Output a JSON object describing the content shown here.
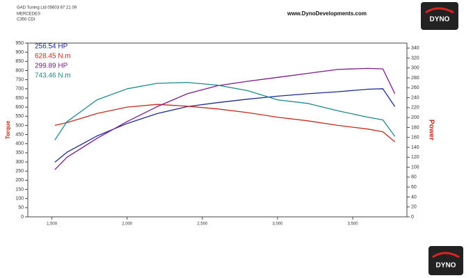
{
  "chart_data": {
    "type": "line",
    "header_lines": [
      "GAD Tuning Ltd 05603 67 21 09",
      "MERCEDES",
      "C350 CDI"
    ],
    "website": "www.DynoDevelopments.com",
    "logo": "DYNO",
    "ylabel": "Torque",
    "y2label": "Power",
    "x": [
      1520,
      1600,
      1800,
      2000,
      2200,
      2400,
      2600,
      2800,
      3000,
      3200,
      3400,
      3600,
      3700,
      3780
    ],
    "xlim": [
      1340,
      3860
    ],
    "xticks": [
      {
        "value": 1500,
        "label": "1,500"
      },
      {
        "value": 2000,
        "label": "2,000"
      },
      {
        "value": 2500,
        "label": "2,500"
      },
      {
        "value": 3000,
        "label": "3,000"
      },
      {
        "value": 3500,
        "label": "3,500"
      }
    ],
    "ylim": [
      0,
      950
    ],
    "yticks": [
      0,
      50,
      100,
      150,
      200,
      250,
      300,
      350,
      400,
      450,
      500,
      550,
      600,
      650,
      700,
      750,
      800,
      850,
      900,
      950
    ],
    "y2lim": [
      0,
      350
    ],
    "y2ticks": [
      0,
      20,
      40,
      60,
      80,
      100,
      120,
      140,
      160,
      180,
      200,
      220,
      240,
      260,
      280,
      300,
      320,
      340
    ],
    "series": [
      {
        "name": "256.54 HP",
        "color": "#1c2a9c",
        "axis": "y2",
        "values": [
          110,
          130,
          163,
          188,
          208,
          222,
          230,
          237,
          243,
          248,
          252,
          257,
          258,
          222
        ]
      },
      {
        "name": "628.45 N.m",
        "color": "#c9281e",
        "values": [
          500,
          515,
          565,
          600,
          615,
          605,
          590,
          570,
          545,
          525,
          500,
          480,
          465,
          410
        ]
      },
      {
        "name": "299.89 HP",
        "color": "#7b1a8c",
        "axis": "y2",
        "values": [
          95,
          120,
          158,
          192,
          222,
          248,
          264,
          273,
          281,
          289,
          297,
          299,
          298,
          248
        ]
      },
      {
        "name": "743.46 N.m",
        "color": "#1b8a8a",
        "values": [
          420,
          520,
          640,
          700,
          730,
          735,
          720,
          690,
          640,
          620,
          580,
          545,
          530,
          440
        ]
      }
    ]
  }
}
